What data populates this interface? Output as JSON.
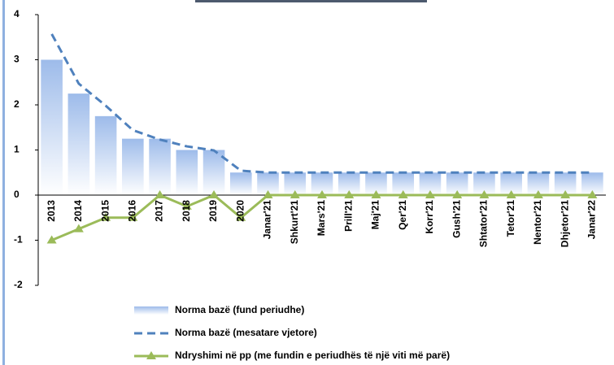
{
  "chart_data": {
    "type": "bar_line",
    "categories": [
      "2013",
      "2014",
      "2015",
      "2016",
      "2017",
      "2018",
      "2019",
      "2020",
      "Janar'21",
      "Shkurt'21",
      "Mars'21",
      "Prill'21",
      "Maj'21",
      "Qer'21",
      "Korr'21",
      "Gush'21",
      "Shtator'21",
      "Tetor'21",
      "Nentor'21",
      "Dhjetor'21",
      "Janar'22"
    ],
    "series": [
      {
        "name": "Norma bazë (fund periudhe)",
        "kind": "bar",
        "color": "#9dbbea",
        "values": [
          3,
          2.25,
          1.75,
          1.25,
          1.25,
          1,
          1,
          0.5,
          0.5,
          0.5,
          0.5,
          0.5,
          0.5,
          0.5,
          0.5,
          0.5,
          0.5,
          0.5,
          0.5,
          0.5,
          0.5
        ]
      },
      {
        "name": "Norma bazë (mesatare vjetore)",
        "kind": "dashed",
        "color": "#4f81bd",
        "values": [
          3.57,
          2.47,
          1.98,
          1.44,
          1.23,
          1.08,
          0.99,
          0.54,
          0.5,
          0.5,
          0.5,
          0.5,
          0.5,
          0.5,
          0.5,
          0.5,
          0.5,
          0.5,
          0.5,
          0.5,
          0.5
        ]
      },
      {
        "name": "Ndryshimi në pp (me fundin e periudhës të një viti më parë)",
        "kind": "triangle",
        "color": "#9bbb59",
        "values": [
          -1,
          -0.75,
          -0.5,
          -0.5,
          0,
          -0.25,
          0,
          -0.5,
          0,
          0,
          0,
          0,
          0,
          0,
          0,
          0,
          0,
          0,
          0,
          0,
          0
        ]
      }
    ],
    "ylim": [
      -2,
      4
    ],
    "yticks": [
      -2,
      -1,
      0,
      1,
      2,
      3,
      4
    ]
  }
}
